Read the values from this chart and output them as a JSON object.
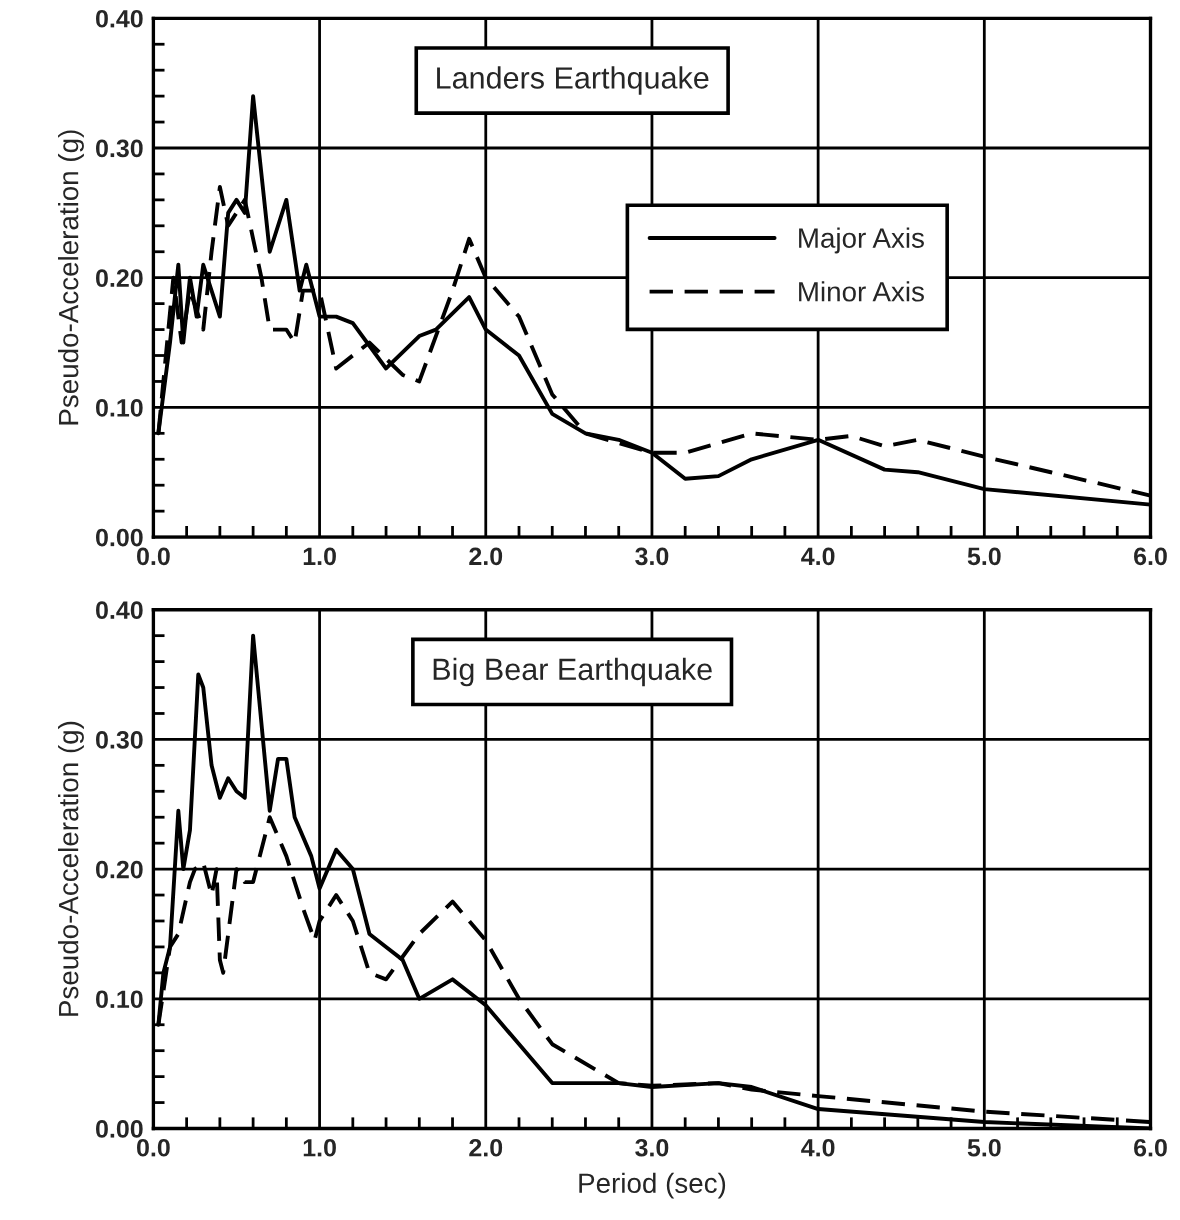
{
  "chart_data": [
    {
      "type": "line",
      "title": "Landers Earthquake",
      "ylabel": "Pseudo-Acceleration (g)",
      "legend": "right",
      "grid": true,
      "xlim": [
        0,
        6
      ],
      "ylim": [
        0,
        0.4
      ],
      "xticks": [
        {
          "value": 0,
          "label": "0.0"
        },
        {
          "value": 0.2,
          "label": null
        },
        {
          "value": 0.4,
          "label": null
        },
        {
          "value": 0.6,
          "label": null
        },
        {
          "value": 0.8,
          "label": null
        },
        {
          "value": 1,
          "label": "1.0"
        },
        {
          "value": 1.2,
          "label": null
        },
        {
          "value": 1.4,
          "label": null
        },
        {
          "value": 1.6,
          "label": null
        },
        {
          "value": 1.8,
          "label": null
        },
        {
          "value": 2,
          "label": "2.0"
        },
        {
          "value": 2.2,
          "label": null
        },
        {
          "value": 2.4,
          "label": null
        },
        {
          "value": 2.6,
          "label": null
        },
        {
          "value": 2.8,
          "label": null
        },
        {
          "value": 3,
          "label": "3.0"
        },
        {
          "value": 3.2,
          "label": null
        },
        {
          "value": 3.4,
          "label": null
        },
        {
          "value": 3.6,
          "label": null
        },
        {
          "value": 3.8,
          "label": null
        },
        {
          "value": 4,
          "label": "4.0"
        },
        {
          "value": 4.2,
          "label": null
        },
        {
          "value": 4.4,
          "label": null
        },
        {
          "value": 4.6,
          "label": null
        },
        {
          "value": 4.8,
          "label": null
        },
        {
          "value": 5,
          "label": "5.0"
        },
        {
          "value": 5.2,
          "label": null
        },
        {
          "value": 5.4,
          "label": null
        },
        {
          "value": 5.6,
          "label": null
        },
        {
          "value": 5.8,
          "label": null
        },
        {
          "value": 6,
          "label": "6.0"
        }
      ],
      "yticks": [
        {
          "value": 0,
          "label": "0.00"
        },
        {
          "value": 0.02,
          "label": null
        },
        {
          "value": 0.04,
          "label": null
        },
        {
          "value": 0.06,
          "label": null
        },
        {
          "value": 0.08,
          "label": null
        },
        {
          "value": 0.1,
          "label": "0.10"
        },
        {
          "value": 0.12,
          "label": null
        },
        {
          "value": 0.14,
          "label": null
        },
        {
          "value": 0.16,
          "label": null
        },
        {
          "value": 0.18,
          "label": null
        },
        {
          "value": 0.2,
          "label": "0.20"
        },
        {
          "value": 0.22,
          "label": null
        },
        {
          "value": 0.24,
          "label": null
        },
        {
          "value": 0.26,
          "label": null
        },
        {
          "value": 0.28,
          "label": null
        },
        {
          "value": 0.3,
          "label": "0.30"
        },
        {
          "value": 0.32,
          "label": null
        },
        {
          "value": 0.34,
          "label": null
        },
        {
          "value": 0.36,
          "label": null
        },
        {
          "value": 0.38,
          "label": null
        },
        {
          "value": 0.4,
          "label": "0.40"
        }
      ],
      "series": [
        {
          "name": "Major Axis",
          "color": "#000000",
          "line_style": "solid",
          "x": [
            0.03,
            0.1,
            0.15,
            0.18,
            0.22,
            0.26,
            0.3,
            0.35,
            0.4,
            0.45,
            0.5,
            0.55,
            0.6,
            0.7,
            0.8,
            0.88,
            0.92,
            1.0,
            1.1,
            1.2,
            1.4,
            1.6,
            1.7,
            1.9,
            2.0,
            2.2,
            2.4,
            2.6,
            2.8,
            3.0,
            3.2,
            3.4,
            3.6,
            4.0,
            4.4,
            4.6,
            5.0,
            6.0
          ],
          "values": [
            0.08,
            0.15,
            0.21,
            0.15,
            0.2,
            0.17,
            0.21,
            0.19,
            0.17,
            0.25,
            0.26,
            0.25,
            0.34,
            0.22,
            0.26,
            0.19,
            0.21,
            0.17,
            0.17,
            0.165,
            0.13,
            0.155,
            0.16,
            0.185,
            0.16,
            0.14,
            0.095,
            0.08,
            0.075,
            0.065,
            0.045,
            0.047,
            0.06,
            0.075,
            0.052,
            0.05,
            0.037,
            0.025
          ]
        },
        {
          "name": "Minor Axis",
          "color": "#000000",
          "line_style": "dashed",
          "x": [
            0.03,
            0.12,
            0.17,
            0.22,
            0.3,
            0.35,
            0.4,
            0.45,
            0.5,
            0.55,
            0.6,
            0.65,
            0.7,
            0.8,
            0.85,
            0.9,
            1.0,
            1.1,
            1.2,
            1.3,
            1.5,
            1.6,
            1.8,
            1.9,
            2.0,
            2.2,
            2.4,
            2.6,
            3.0,
            3.2,
            3.6,
            4.0,
            4.2,
            4.4,
            4.6,
            5.0,
            5.4,
            6.0
          ],
          "values": [
            0.08,
            0.2,
            0.15,
            0.19,
            0.16,
            0.22,
            0.27,
            0.24,
            0.25,
            0.26,
            0.23,
            0.2,
            0.16,
            0.16,
            0.15,
            0.19,
            0.19,
            0.13,
            0.14,
            0.15,
            0.125,
            0.12,
            0.19,
            0.23,
            0.2,
            0.17,
            0.11,
            0.08,
            0.065,
            0.065,
            0.08,
            0.075,
            0.078,
            0.07,
            0.075,
            0.062,
            0.05,
            0.032
          ]
        }
      ]
    },
    {
      "type": "line",
      "title": "Big Bear Earthquake",
      "xlabel": "Period (sec)",
      "ylabel": "Pseudo-Acceleration (g)",
      "grid": true,
      "xlim": [
        0,
        6
      ],
      "ylim": [
        0,
        0.4
      ],
      "xticks": [
        {
          "value": 0,
          "label": "0.0"
        },
        {
          "value": 0.2,
          "label": null
        },
        {
          "value": 0.4,
          "label": null
        },
        {
          "value": 0.6,
          "label": null
        },
        {
          "value": 0.8,
          "label": null
        },
        {
          "value": 1,
          "label": "1.0"
        },
        {
          "value": 1.2,
          "label": null
        },
        {
          "value": 1.4,
          "label": null
        },
        {
          "value": 1.6,
          "label": null
        },
        {
          "value": 1.8,
          "label": null
        },
        {
          "value": 2,
          "label": "2.0"
        },
        {
          "value": 2.2,
          "label": null
        },
        {
          "value": 2.4,
          "label": null
        },
        {
          "value": 2.6,
          "label": null
        },
        {
          "value": 2.8,
          "label": null
        },
        {
          "value": 3,
          "label": "3.0"
        },
        {
          "value": 3.2,
          "label": null
        },
        {
          "value": 3.4,
          "label": null
        },
        {
          "value": 3.6,
          "label": null
        },
        {
          "value": 3.8,
          "label": null
        },
        {
          "value": 4,
          "label": "4.0"
        },
        {
          "value": 4.2,
          "label": null
        },
        {
          "value": 4.4,
          "label": null
        },
        {
          "value": 4.6,
          "label": null
        },
        {
          "value": 4.8,
          "label": null
        },
        {
          "value": 5,
          "label": "5.0"
        },
        {
          "value": 5.2,
          "label": null
        },
        {
          "value": 5.4,
          "label": null
        },
        {
          "value": 5.6,
          "label": null
        },
        {
          "value": 5.8,
          "label": null
        },
        {
          "value": 6,
          "label": "6.0"
        }
      ],
      "yticks": [
        {
          "value": 0,
          "label": "0.00"
        },
        {
          "value": 0.02,
          "label": null
        },
        {
          "value": 0.04,
          "label": null
        },
        {
          "value": 0.06,
          "label": null
        },
        {
          "value": 0.08,
          "label": null
        },
        {
          "value": 0.1,
          "label": "0.10"
        },
        {
          "value": 0.12,
          "label": null
        },
        {
          "value": 0.14,
          "label": null
        },
        {
          "value": 0.16,
          "label": null
        },
        {
          "value": 0.18,
          "label": null
        },
        {
          "value": 0.2,
          "label": "0.20"
        },
        {
          "value": 0.22,
          "label": null
        },
        {
          "value": 0.24,
          "label": null
        },
        {
          "value": 0.26,
          "label": null
        },
        {
          "value": 0.28,
          "label": null
        },
        {
          "value": 0.3,
          "label": "0.30"
        },
        {
          "value": 0.32,
          "label": null
        },
        {
          "value": 0.34,
          "label": null
        },
        {
          "value": 0.36,
          "label": null
        },
        {
          "value": 0.38,
          "label": null
        },
        {
          "value": 0.4,
          "label": "0.40"
        }
      ],
      "series": [
        {
          "color": "#000000",
          "line_style": "solid",
          "x": [
            0.03,
            0.06,
            0.1,
            0.15,
            0.18,
            0.22,
            0.27,
            0.3,
            0.35,
            0.4,
            0.45,
            0.5,
            0.55,
            0.6,
            0.7,
            0.75,
            0.8,
            0.85,
            0.95,
            1.0,
            1.1,
            1.2,
            1.3,
            1.4,
            1.5,
            1.6,
            1.8,
            2.0,
            2.4,
            2.8,
            3.0,
            3.4,
            3.6,
            4.0,
            5.0,
            6.0
          ],
          "values": [
            0.08,
            0.12,
            0.14,
            0.245,
            0.2,
            0.23,
            0.35,
            0.34,
            0.28,
            0.255,
            0.27,
            0.26,
            0.255,
            0.38,
            0.245,
            0.285,
            0.285,
            0.24,
            0.21,
            0.185,
            0.215,
            0.2,
            0.15,
            0.14,
            0.13,
            0.1,
            0.115,
            0.095,
            0.035,
            0.035,
            0.032,
            0.035,
            0.032,
            0.015,
            0.005,
            0.0
          ]
        },
        {
          "color": "#000000",
          "line_style": "dashed",
          "x": [
            0.03,
            0.1,
            0.15,
            0.22,
            0.25,
            0.3,
            0.35,
            0.38,
            0.4,
            0.42,
            0.5,
            0.55,
            0.6,
            0.7,
            0.8,
            0.9,
            0.97,
            1.0,
            1.1,
            1.2,
            1.3,
            1.4,
            1.6,
            1.8,
            2.0,
            2.2,
            2.4,
            2.8,
            3.0,
            3.4,
            3.6,
            4.0,
            5.0,
            6.0
          ],
          "values": [
            0.08,
            0.14,
            0.15,
            0.19,
            0.2,
            0.205,
            0.18,
            0.2,
            0.13,
            0.12,
            0.2,
            0.19,
            0.19,
            0.24,
            0.21,
            0.17,
            0.145,
            0.16,
            0.18,
            0.16,
            0.12,
            0.115,
            0.15,
            0.175,
            0.145,
            0.1,
            0.065,
            0.035,
            0.033,
            0.035,
            0.03,
            0.025,
            0.013,
            0.005
          ]
        }
      ]
    }
  ]
}
